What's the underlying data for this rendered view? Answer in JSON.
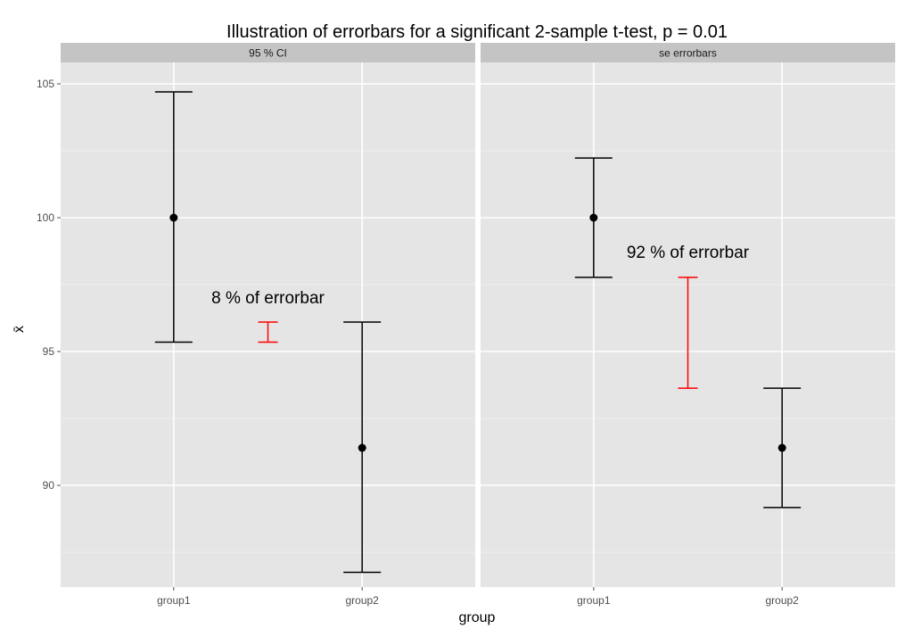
{
  "chart_data": {
    "type": "errorbar",
    "title": "Illustration of errorbars for a significant 2-sample t-test, p = 0.01",
    "xlabel": "group",
    "ylabel": "x̄",
    "ylim": [
      86.2,
      105.8
    ],
    "yticks": [
      90,
      95,
      100,
      105
    ],
    "y_minor": [
      87.5,
      92.5,
      97.5,
      102.5
    ],
    "grid": true,
    "colors": {
      "panel_bg": "#E5E5E5",
      "strip_bg": "#C4C4C4",
      "grid": "#FFFFFF",
      "bar": "#000000",
      "difference_bar": "#FF0000"
    },
    "panels": [
      {
        "strip": "95 % CI",
        "categories": [
          "group1",
          "group2"
        ],
        "points": [
          {
            "group": "group1",
            "mean": 100.0,
            "lower": 95.35,
            "upper": 104.7
          },
          {
            "group": "group2",
            "mean": 91.4,
            "lower": 86.75,
            "upper": 96.1
          }
        ],
        "difference_bar": {
          "x": 1.5,
          "lower": 95.35,
          "upper": 96.1
        },
        "annotation": {
          "text": "8 % of errorbar",
          "x": 1.5,
          "y": 96.8
        }
      },
      {
        "strip": "se errorbars",
        "categories": [
          "group1",
          "group2"
        ],
        "points": [
          {
            "group": "group1",
            "mean": 100.0,
            "lower": 97.77,
            "upper": 102.23
          },
          {
            "group": "group2",
            "mean": 91.4,
            "lower": 89.17,
            "upper": 93.63
          }
        ],
        "difference_bar": {
          "x": 1.5,
          "lower": 93.63,
          "upper": 97.77
        },
        "annotation": {
          "text": "92 % of errorbar",
          "x": 1.5,
          "y": 98.5
        }
      }
    ]
  }
}
